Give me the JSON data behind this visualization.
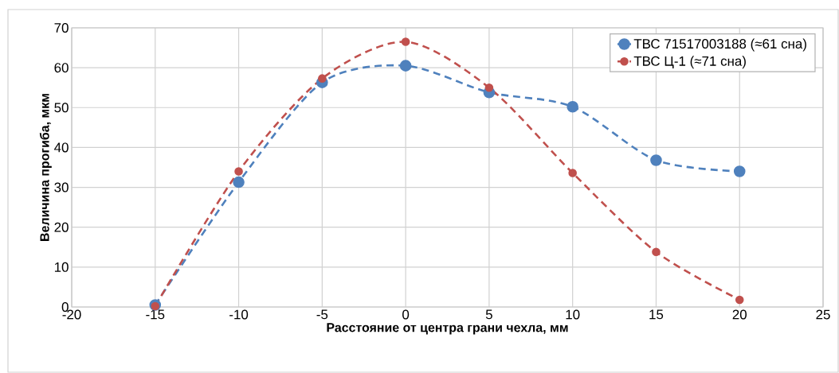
{
  "chart_data": {
    "type": "line",
    "xlabel": "Расстояние от центра грани чехла, мм",
    "ylabel": "Величина прогиба, мкм",
    "x": [
      -15,
      -10,
      -5,
      0,
      5,
      10,
      15,
      20
    ],
    "series": [
      {
        "name": "ТВС 71517003188 (≈61 сна)",
        "color": "#4f81bd",
        "values": [
          0.5,
          31.3,
          56.3,
          60.5,
          53.8,
          50.2,
          36.8,
          34
        ]
      },
      {
        "name": "ТВС Ц-1 (≈71 сна)",
        "color": "#c0504d",
        "values": [
          0.2,
          34,
          57.3,
          66.5,
          55,
          33.6,
          13.8,
          1.8
        ]
      }
    ],
    "xlim": [
      -20,
      25
    ],
    "xticks": [
      -20,
      -15,
      -10,
      -5,
      0,
      5,
      10,
      15,
      20,
      25
    ],
    "ylim": [
      0,
      70
    ],
    "yticks": [
      0,
      10,
      20,
      30,
      40,
      50,
      60,
      70
    ],
    "grid": true,
    "legend": "top right",
    "marker": "circle",
    "line_style": "dashed"
  }
}
